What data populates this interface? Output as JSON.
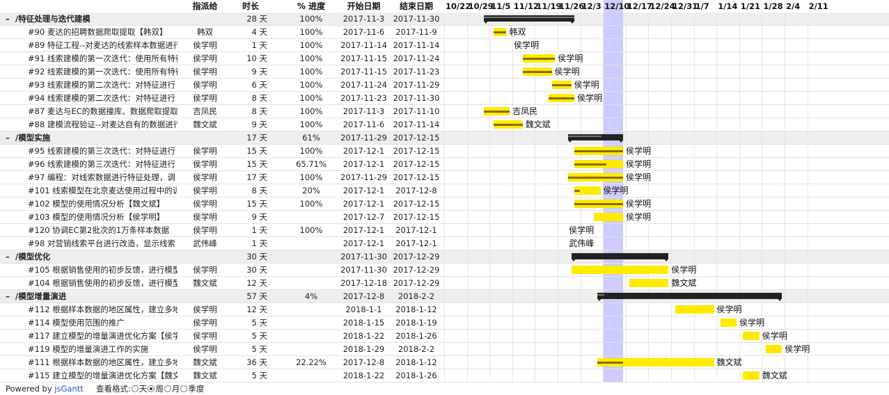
{
  "headers": {
    "resource": "指派给",
    "duration": "时长",
    "percent": "% 进度",
    "start": "开始日期",
    "end": "结束日期"
  },
  "rows": [
    {
      "type": "group",
      "toggle": "–",
      "name": "/特征处理与迭代建模",
      "resource": "",
      "duration": "28 天",
      "percent": "100%",
      "start": "2017-11-3",
      "end": "2017-11-30",
      "bar_start": "2017-11-3",
      "bar_end": "2017-11-30",
      "progress": 1.0
    },
    {
      "type": "task",
      "name": "#90 麦达的招聘数据爬取提取【韩双】",
      "resource": "韩双",
      "duration": "4 天",
      "percent": "100%",
      "start": "2017-11-6",
      "end": "2017-11-9",
      "bar_start": "2017-11-6",
      "bar_end": "2017-11-9",
      "progress": 1.0,
      "label": "韩双"
    },
    {
      "type": "task",
      "name": "#89 特征工程--对麦达的线索样本数据进行",
      "resource": "侯学明",
      "duration": "1 天",
      "percent": "100%",
      "start": "2017-11-14",
      "end": "2017-11-14",
      "bar_start": "",
      "bar_end": "",
      "progress": 1.0,
      "label": "侯学明",
      "label_date": "2017-11-14"
    },
    {
      "type": "task",
      "name": "#91 线索建模的第一次迭代：使用所有特征",
      "resource": "侯学明",
      "duration": "10 天",
      "percent": "100%",
      "start": "2017-11-15",
      "end": "2017-11-24",
      "bar_start": "2017-11-15",
      "bar_end": "2017-11-24",
      "progress": 1.0,
      "label": "侯学明"
    },
    {
      "type": "task",
      "name": "#92 线索建模的第一次迭代：使用所有特征",
      "resource": "侯学明",
      "duration": "9 天",
      "percent": "100%",
      "start": "2017-11-15",
      "end": "2017-11-23",
      "bar_start": "2017-11-15",
      "bar_end": "2017-11-23",
      "progress": 1.0,
      "label": "侯学明"
    },
    {
      "type": "task",
      "name": "#93 线索建模的第二次迭代：对特征进行",
      "resource": "侯学明",
      "duration": "6 天",
      "percent": "100%",
      "start": "2017-11-24",
      "end": "2017-11-29",
      "bar_start": "2017-11-24",
      "bar_end": "2017-11-29",
      "progress": 1.0,
      "label": "侯学明"
    },
    {
      "type": "task",
      "name": "#94 线索建模的第二次迭代：对特征进行",
      "resource": "侯学明",
      "duration": "8 天",
      "percent": "100%",
      "start": "2017-11-23",
      "end": "2017-11-30",
      "bar_start": "2017-11-23",
      "bar_end": "2017-11-30",
      "progress": 1.0,
      "label": "侯学明"
    },
    {
      "type": "task",
      "name": "#87 麦达与EC的数据撞库、数据爬取提取",
      "resource": "吉凤民",
      "duration": "8 天",
      "percent": "100%",
      "start": "2017-11-3",
      "end": "2017-11-10",
      "bar_start": "2017-11-3",
      "bar_end": "2017-11-10",
      "progress": 1.0,
      "label": "吉凤民"
    },
    {
      "type": "task",
      "name": "#88 建模流程验证--对麦达自有的数据进行",
      "resource": "魏文斌",
      "duration": "9 天",
      "percent": "100%",
      "start": "2017-11-6",
      "end": "2017-11-14",
      "bar_start": "2017-11-6",
      "bar_end": "2017-11-14",
      "progress": 1.0,
      "label": "魏文斌"
    },
    {
      "type": "group",
      "toggle": "–",
      "name": "/模型实施",
      "resource": "",
      "duration": "17 天",
      "percent": "61%",
      "start": "2017-11-29",
      "end": "2017-12-15",
      "bar_start": "2017-11-29",
      "bar_end": "2017-12-15",
      "progress": 0.61
    },
    {
      "type": "task",
      "name": "#95 线索建模的第三次迭代：对特征进行",
      "resource": "侯学明",
      "duration": "15 天",
      "percent": "100%",
      "start": "2017-12-1",
      "end": "2017-12-15",
      "bar_start": "2017-12-1",
      "bar_end": "2017-12-15",
      "progress": 1.0,
      "label": "侯学明"
    },
    {
      "type": "task",
      "name": "#96 线索建模的第三次迭代：对特征进行",
      "resource": "侯学明",
      "duration": "15 天",
      "percent": "65.71%",
      "start": "2017-12-1",
      "end": "2017-12-15",
      "bar_start": "2017-12-1",
      "bar_end": "2017-12-15",
      "progress": 0.6571,
      "label": "侯学明"
    },
    {
      "type": "task",
      "name": "#97 编程：对线索数据进行特征处理，调",
      "resource": "侯学明",
      "duration": "17 天",
      "percent": "100%",
      "start": "2017-11-29",
      "end": "2017-12-15",
      "bar_start": "2017-11-29",
      "bar_end": "2017-12-15",
      "progress": 1.0,
      "label": "侯学明"
    },
    {
      "type": "task",
      "name": "#101 线索模型在北京麦达使用过程中的训",
      "resource": "侯学明",
      "duration": "8 天",
      "percent": "20%",
      "start": "2017-12-1",
      "end": "2017-12-8",
      "bar_start": "2017-12-1",
      "bar_end": "2017-12-8",
      "progress": 0.2,
      "label": "侯学明"
    },
    {
      "type": "task",
      "name": "#102 模型的使用情况分析【魏文斌】",
      "resource": "侯学明",
      "duration": "15 天",
      "percent": "100%",
      "start": "2017-12-1",
      "end": "2017-12-15",
      "bar_start": "2017-12-1",
      "bar_end": "2017-12-15",
      "progress": 1.0,
      "label": "侯学明"
    },
    {
      "type": "task",
      "name": "#103 模型的使用情况分析【侯学明】",
      "resource": "侯学明",
      "duration": "9 天",
      "percent": "",
      "start": "2017-12-7",
      "end": "2017-12-15",
      "bar_start": "2017-12-7",
      "bar_end": "2017-12-15",
      "progress": 0,
      "label": "侯学明"
    },
    {
      "type": "task",
      "name": "#120 协调EC第2批次的1万条样本数据",
      "resource": "侯学明",
      "duration": "1 天",
      "percent": "100%",
      "start": "2017-12-1",
      "end": "2017-12-1",
      "bar_start": "",
      "bar_end": "",
      "progress": 1.0,
      "label": "侯学明",
      "label_date": "2017-12-1"
    },
    {
      "type": "task",
      "name": "#98 对营销线索平台进行改造，显示线索",
      "resource": "武伟峰",
      "duration": "1 天",
      "percent": "",
      "start": "2017-12-1",
      "end": "2017-12-1",
      "bar_start": "",
      "bar_end": "",
      "progress": 0,
      "label": "武伟峰",
      "label_date": "2017-12-1"
    },
    {
      "type": "group",
      "toggle": "–",
      "name": "/模型优化",
      "resource": "",
      "duration": "30 天",
      "percent": "",
      "start": "2017-11-30",
      "end": "2017-12-29",
      "bar_start": "2017-11-30",
      "bar_end": "2017-12-29",
      "progress": 0
    },
    {
      "type": "task",
      "name": "#105 根据销售使用的初步反馈，进行模型",
      "resource": "侯学明",
      "duration": "30 天",
      "percent": "",
      "start": "2017-11-30",
      "end": "2017-12-29",
      "bar_start": "2017-11-30",
      "bar_end": "2017-12-29",
      "progress": 0,
      "label": "侯学明"
    },
    {
      "type": "task",
      "name": "#104 根据销售使用的初步反馈，进行模型",
      "resource": "魏文斌",
      "duration": "12 天",
      "percent": "",
      "start": "2017-12-18",
      "end": "2017-12-29",
      "bar_start": "2017-12-18",
      "bar_end": "2017-12-29",
      "progress": 0,
      "label": "魏文斌"
    },
    {
      "type": "group",
      "toggle": "–",
      "name": "/模型增量演进",
      "resource": "",
      "duration": "57 天",
      "percent": "4%",
      "start": "2017-12-8",
      "end": "2018-2-2",
      "bar_start": "2017-12-8",
      "bar_end": "2018-2-2",
      "progress": 0.04
    },
    {
      "type": "task",
      "name": "#112 根据样本数据的地区属性，建立多地",
      "resource": "侯学明",
      "duration": "12 天",
      "percent": "",
      "start": "2018-1-1",
      "end": "2018-1-12",
      "bar_start": "2018-1-1",
      "bar_end": "2018-1-12",
      "progress": 0,
      "label": "侯学明"
    },
    {
      "type": "task",
      "name": "#114 模型使用范围的推广",
      "resource": "侯学明",
      "duration": "5 天",
      "percent": "",
      "start": "2018-1-15",
      "end": "2018-1-19",
      "bar_start": "2018-1-15",
      "bar_end": "2018-1-19",
      "progress": 0,
      "label": "侯学明"
    },
    {
      "type": "task",
      "name": "#117 建立模型的增量演进优化方案【侯学",
      "resource": "侯学明",
      "duration": "5 天",
      "percent": "",
      "start": "2018-1-22",
      "end": "2018-1-26",
      "bar_start": "2018-1-22",
      "bar_end": "2018-1-26",
      "progress": 0,
      "label": "侯学明"
    },
    {
      "type": "task",
      "name": "#119 模型的增量演进工作的实施",
      "resource": "侯学明",
      "duration": "5 天",
      "percent": "",
      "start": "2018-1-29",
      "end": "2018-2-2",
      "bar_start": "2018-1-29",
      "bar_end": "2018-2-2",
      "progress": 0,
      "label": "侯学明"
    },
    {
      "type": "task",
      "name": "#111 根据样本数据的地区属性，建立多地",
      "resource": "魏文斌",
      "duration": "36 天",
      "percent": "22.22%",
      "start": "2017-12-8",
      "end": "2018-1-12",
      "bar_start": "2017-12-8",
      "bar_end": "2018-1-12",
      "progress": 0.2222,
      "label": "魏文斌"
    },
    {
      "type": "task",
      "name": "#115 建立模型的增量演进优化方案【魏文",
      "resource": "魏文斌",
      "duration": "5 天",
      "percent": "",
      "start": "2018-1-22",
      "end": "2018-1-26",
      "bar_start": "2018-1-22",
      "bar_end": "2018-1-26",
      "progress": 0,
      "label": "魏文斌"
    }
  ],
  "timeline": {
    "week_labels": [
      "10/22",
      "10/29",
      "11/5",
      "11/12",
      "11/19",
      "11/26",
      "12/3",
      "12/10",
      "12/17",
      "12/24",
      "12/31",
      "1/7",
      "1/14",
      "1/21",
      "1/28",
      "2/4",
      "2/11"
    ],
    "highlight_week": "12/10",
    "today_start": "2017-12-10",
    "today_end": "2017-12-16",
    "axis_start": "2017-10-22",
    "bar_color": "#ffea00",
    "group_bar_color": "#222222",
    "today_color": "#ccccff"
  },
  "footer": {
    "powered": "Powered by ",
    "link": "jsGantt",
    "format_label": "查看格式:",
    "options": [
      {
        "label": "天",
        "selected": false
      },
      {
        "label": "周",
        "selected": true
      },
      {
        "label": "月",
        "selected": false
      },
      {
        "label": "季度",
        "selected": false
      }
    ]
  }
}
